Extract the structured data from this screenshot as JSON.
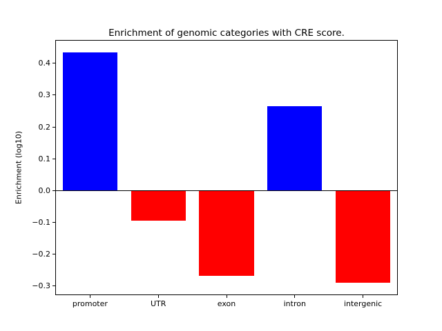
{
  "chart_data": {
    "type": "bar",
    "title": "Enrichment of genomic categories with CRE score.",
    "xlabel": "",
    "ylabel": "Enrichment (log10)",
    "categories": [
      "promoter",
      "UTR",
      "exon",
      "intron",
      "intergenic"
    ],
    "values": [
      0.435,
      -0.095,
      -0.268,
      0.265,
      -0.29
    ],
    "positive_color": "#0000ff",
    "negative_color": "#ff0000",
    "axis_color": "#000000",
    "background_color": "#ffffff",
    "ylim": [
      -0.326,
      0.471
    ],
    "yticks": [
      -0.3,
      -0.2,
      -0.1,
      0.0,
      0.1,
      0.2,
      0.3,
      0.4
    ],
    "grid": false,
    "zero_line": true,
    "legend": "none",
    "bar_width_fraction": 0.8
  }
}
